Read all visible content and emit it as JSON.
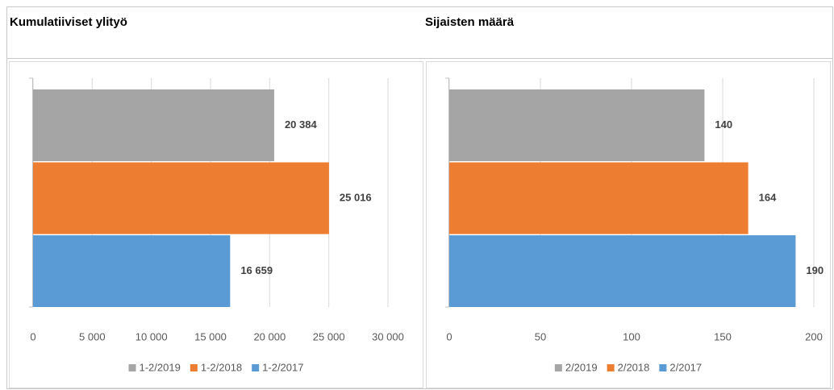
{
  "chart_data": [
    {
      "type": "bar",
      "orientation": "horizontal",
      "title": "Kumulatiiviset ylityö",
      "series": [
        {
          "name": "1-2/2019",
          "color": "#a5a5a5",
          "values": [
            20384
          ],
          "value_labels": [
            "20 384"
          ]
        },
        {
          "name": "1-2/2018",
          "color": "#ed7d31",
          "values": [
            25016
          ],
          "value_labels": [
            "25 016"
          ]
        },
        {
          "name": "1-2/2017",
          "color": "#5b9bd5",
          "values": [
            16659
          ],
          "value_labels": [
            "16 659"
          ]
        }
      ],
      "xlim": [
        0,
        30000
      ],
      "xticks": [
        0,
        {
          "value": 5000,
          "label": "5 000"
        },
        {
          "value": 10000,
          "label": "10 000"
        },
        {
          "value": 15000,
          "label": "15 000"
        },
        {
          "value": 20000,
          "label": "20 000"
        },
        {
          "value": 25000,
          "label": "25 000"
        },
        {
          "value": 30000,
          "label": "30 000"
        }
      ],
      "grid": true,
      "legend": "bottom"
    },
    {
      "type": "bar",
      "orientation": "horizontal",
      "title": "Sijaisten määrä",
      "series": [
        {
          "name": "2/2019",
          "color": "#a5a5a5",
          "values": [
            140
          ]
        },
        {
          "name": "2/2018",
          "color": "#ed7d31",
          "values": [
            164
          ]
        },
        {
          "name": "2/2017",
          "color": "#5b9bd5",
          "values": [
            190
          ]
        }
      ],
      "xlim": [
        0,
        200
      ],
      "xticks": [
        0,
        50,
        100,
        150,
        200
      ],
      "grid": true,
      "legend": "bottom"
    }
  ]
}
